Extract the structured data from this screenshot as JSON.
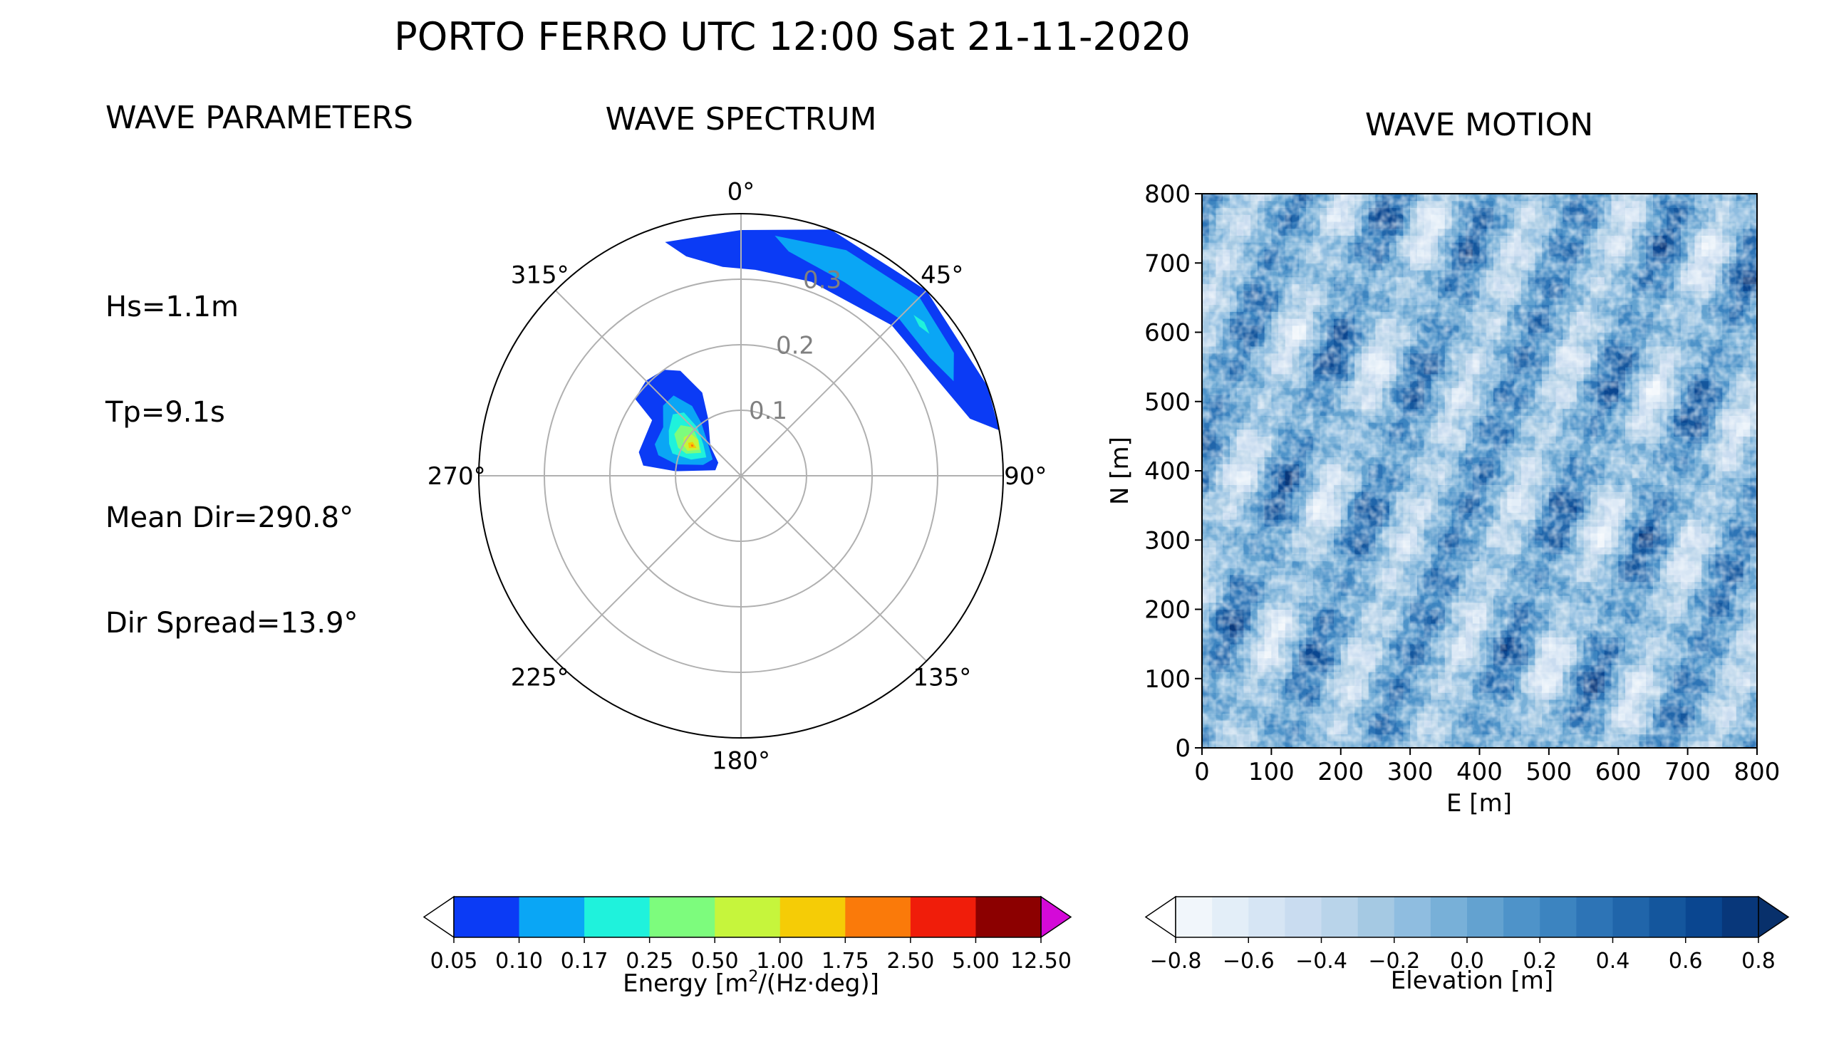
{
  "title": "PORTO FERRO UTC 12:00 Sat 21-11-2020",
  "parameters": {
    "heading": "WAVE PARAMETERS",
    "hs": "Hs=1.1m",
    "tp": "Tp=9.1s",
    "mean_dir": "Mean Dir=290.8°",
    "dir_spread": "Dir Spread=13.9°"
  },
  "chart_data": [
    {
      "type": "polar-contour",
      "title": "WAVE SPECTRUM",
      "theta_direction": "clockwise",
      "theta_zero": "north",
      "angle_labels": [
        "0°",
        "45°",
        "90°",
        "135°",
        "180°",
        "225°",
        "270°",
        "315°"
      ],
      "radial_ticks": [
        0.1,
        0.2,
        0.3
      ],
      "radial_tick_labels": [
        "0.1",
        "0.2",
        "0.3"
      ],
      "r_max": 0.4,
      "grid": true,
      "contours": [
        {
          "level": 0.05,
          "color": "#0b3bf5",
          "points": [
            [
              -18,
              0.375
            ],
            [
              0,
              0.375
            ],
            [
              20,
              0.4
            ],
            [
              45,
              0.4
            ],
            [
              70,
              0.4
            ],
            [
              80,
              0.4
            ],
            [
              76,
              0.36
            ],
            [
              65,
              0.335
            ],
            [
              45,
              0.325
            ],
            [
              20,
              0.315
            ],
            [
              4,
              0.315
            ],
            [
              -5,
              0.32
            ],
            [
              -14,
              0.345
            ]
          ]
        },
        {
          "level": 0.1,
          "color": "#0aa6f5",
          "points": [
            [
              8,
              0.37
            ],
            [
              25,
              0.38
            ],
            [
              45,
              0.385
            ],
            [
              60,
              0.375
            ],
            [
              66,
              0.355
            ],
            [
              58,
              0.34
            ],
            [
              45,
              0.34
            ],
            [
              28,
              0.335
            ],
            [
              12,
              0.35
            ]
          ]
        },
        {
          "level": 0.17,
          "color": "#1ff2dc",
          "points": [
            [
              47,
              0.36
            ],
            [
              50,
              0.365
            ],
            [
              53,
              0.36
            ],
            [
              50,
              0.355
            ]
          ]
        },
        {
          "level": 0.05,
          "color": "#0b3bf5",
          "points": [
            [
              -58,
              0.16
            ],
            [
              -54,
              0.2
            ],
            [
              -45,
              0.205
            ],
            [
              -36,
              0.2
            ],
            [
              -30,
              0.185
            ],
            [
              -25,
              0.14
            ],
            [
              -30,
              0.1
            ],
            [
              -46,
              0.065
            ],
            [
              -60,
              0.04
            ],
            [
              -78,
              0.04
            ],
            [
              -86,
              0.1
            ],
            [
              -84,
              0.15
            ],
            [
              -77,
              0.16
            ]
          ]
        },
        {
          "level": 0.1,
          "color": "#0aa6f5",
          "points": [
            [
              -58,
              0.14
            ],
            [
              -48,
              0.16
            ],
            [
              -40,
              0.16
            ],
            [
              -35,
              0.13
            ],
            [
              -37,
              0.1
            ],
            [
              -46,
              0.07
            ],
            [
              -60,
              0.05
            ],
            [
              -74,
              0.06
            ],
            [
              -80,
              0.1
            ],
            [
              -76,
              0.13
            ],
            [
              -70,
              0.14
            ]
          ]
        },
        {
          "level": 0.17,
          "color": "#1ff2dc",
          "points": [
            [
              -58,
              0.13
            ],
            [
              -48,
              0.14
            ],
            [
              -42,
              0.13
            ],
            [
              -42,
              0.1
            ],
            [
              -50,
              0.075
            ],
            [
              -62,
              0.06
            ],
            [
              -72,
              0.08
            ],
            [
              -72,
              0.11
            ],
            [
              -66,
              0.12
            ]
          ]
        },
        {
          "level": 0.25,
          "color": "#7dfc7d",
          "points": [
            [
              -58,
              0.12
            ],
            [
              -50,
              0.12
            ],
            [
              -45,
              0.105
            ],
            [
              -50,
              0.085
            ],
            [
              -60,
              0.07
            ],
            [
              -68,
              0.09
            ],
            [
              -66,
              0.105
            ]
          ]
        },
        {
          "level": 0.5,
          "color": "#c6f53c",
          "points": [
            [
              -56,
              0.105
            ],
            [
              -50,
              0.1
            ],
            [
              -50,
              0.085
            ],
            [
              -58,
              0.075
            ],
            [
              -65,
              0.09
            ],
            [
              -62,
              0.1
            ]
          ]
        },
        {
          "level": 1.0,
          "color": "#f5cc06",
          "points": [
            [
              -58,
              0.095
            ],
            [
              -55,
              0.09
            ],
            [
              -58,
              0.08
            ],
            [
              -62,
              0.09
            ]
          ]
        },
        {
          "level": 1.75,
          "color": "#fa7a0a",
          "points": [
            [
              -58,
              0.09
            ],
            [
              -57,
              0.087
            ],
            [
              -58.5,
              0.085
            ],
            [
              -59.5,
              0.088
            ]
          ]
        }
      ]
    },
    {
      "type": "heatmap",
      "title": "WAVE MOTION",
      "xlabel": "E [m]",
      "ylabel": "N [m]",
      "xlim": [
        0,
        800
      ],
      "ylim": [
        0,
        800
      ],
      "xticks": [
        0,
        100,
        200,
        300,
        400,
        500,
        600,
        700,
        800
      ],
      "yticks": [
        0,
        100,
        200,
        300,
        400,
        500,
        600,
        700,
        800
      ],
      "value_range": [
        -0.8,
        0.8
      ],
      "mean_direction_deg": 290.8,
      "wave_period_s": 9.1
    },
    {
      "type": "colorbar",
      "label_prefix": "Energy [m",
      "label_sup": "2",
      "label_suffix": "/(Hz·deg)]",
      "extend": "both",
      "ticks": [
        "0.05",
        "0.10",
        "0.17",
        "0.25",
        "0.50",
        "1.00",
        "1.75",
        "2.50",
        "5.00",
        "12.50"
      ],
      "colors": [
        "#0b3bf5",
        "#0aa6f5",
        "#1ff2dc",
        "#7dfc7d",
        "#c6f53c",
        "#f5cc06",
        "#fa7a0a",
        "#f01d0a",
        "#8c0000"
      ],
      "under_color": "#ffffff",
      "over_color": "#d40ad8"
    },
    {
      "type": "colorbar",
      "label": "Elevation [m]",
      "extend": "both",
      "ticks": [
        "−0.8",
        "−0.6",
        "−0.4",
        "−0.2",
        "0.0",
        "0.2",
        "0.4",
        "0.6",
        "0.8"
      ],
      "colors": [
        "#f1f6fb",
        "#e3eef8",
        "#d6e5f4",
        "#c9dcf0",
        "#b9d4ea",
        "#a5c9e3",
        "#8fbde0",
        "#78b0d8",
        "#63a2d0",
        "#4e93c9",
        "#3c84c0",
        "#2d74b6",
        "#2065aa",
        "#14569d",
        "#0a4690",
        "#08377a"
      ],
      "under_color": "#ffffff",
      "over_color": "#08306b"
    }
  ]
}
